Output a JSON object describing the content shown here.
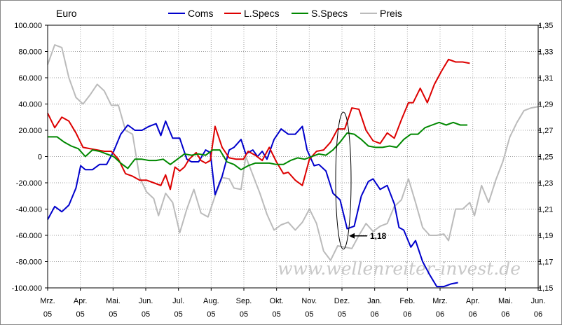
{
  "chart_data": {
    "type": "line",
    "unit_label": "Euro",
    "watermark": "www.wellenreiter-invest.de",
    "annotation": {
      "text": "1,18",
      "x": "Dez. 05",
      "y": 1.18
    },
    "left_axis": {
      "ylim": [
        -100000,
        100000
      ],
      "ticks": [
        100000,
        80000,
        60000,
        40000,
        20000,
        0,
        -20000,
        -40000,
        -60000,
        -80000,
        -100000
      ],
      "tick_labels": [
        "100.000",
        "80.000",
        "60.000",
        "40.000",
        "20.000",
        "0",
        "-20.000",
        "-40.000",
        "-60.000",
        "-80.000",
        "-100.000"
      ]
    },
    "right_axis": {
      "ylim": [
        1.15,
        1.35
      ],
      "ticks": [
        1.35,
        1.33,
        1.31,
        1.29,
        1.27,
        1.25,
        1.23,
        1.21,
        1.19,
        1.17,
        1.15
      ],
      "tick_labels": [
        "1,35",
        "1,33",
        "1,31",
        "1,29",
        "1,27",
        "1,25",
        "1,23",
        "1,21",
        "1,19",
        "1,17",
        "1,15"
      ]
    },
    "x_labels": [
      [
        "Mrz.",
        "05"
      ],
      [
        "Apr.",
        "05"
      ],
      [
        "Mai.",
        "05"
      ],
      [
        "Jun.",
        "05"
      ],
      [
        "Jul.",
        "05"
      ],
      [
        "Aug.",
        "05"
      ],
      [
        "Sep.",
        "05"
      ],
      [
        "Okt.",
        "05"
      ],
      [
        "Nov.",
        "05"
      ],
      [
        "Dez.",
        "05"
      ],
      [
        "Jan.",
        "06"
      ],
      [
        "Feb.",
        "06"
      ],
      [
        "Mrz.",
        "06"
      ],
      [
        "Apr.",
        "06"
      ],
      [
        "Mai.",
        "06"
      ],
      [
        "Jun.",
        "06"
      ]
    ],
    "x_start": 0,
    "x_end": 15,
    "grid": true,
    "legend_position": "top",
    "series": [
      {
        "name": "Coms",
        "color": "#0000cc",
        "axis": "left",
        "points": [
          [
            0,
            -48000
          ],
          [
            0.3,
            -38000
          ],
          [
            0.6,
            -42000
          ],
          [
            0.9,
            -37000
          ],
          [
            1.2,
            -24000
          ],
          [
            1.4,
            -7000
          ],
          [
            1.6,
            -10000
          ],
          [
            1.9,
            -10000
          ],
          [
            2.2,
            -6000
          ],
          [
            2.5,
            -6000
          ],
          [
            2.8,
            4000
          ],
          [
            3.1,
            17000
          ],
          [
            3.4,
            24000
          ],
          [
            3.7,
            20000
          ],
          [
            4.0,
            20000
          ],
          [
            4.3,
            23000
          ],
          [
            4.6,
            25000
          ],
          [
            4.8,
            16000
          ],
          [
            5.0,
            27000
          ],
          [
            5.3,
            14000
          ],
          [
            5.6,
            14000
          ],
          [
            5.9,
            -2000
          ],
          [
            6.1,
            -4000
          ],
          [
            6.4,
            -4000
          ],
          [
            6.7,
            5000
          ],
          [
            6.9,
            3000
          ],
          [
            7.1,
            -29000
          ],
          [
            7.4,
            -15000
          ],
          [
            7.7,
            5000
          ],
          [
            7.9,
            7000
          ],
          [
            8.2,
            13000
          ],
          [
            8.4,
            2000
          ],
          [
            8.7,
            5000
          ],
          [
            8.9,
            0
          ],
          [
            9.1,
            4000
          ],
          [
            9.3,
            -2000
          ],
          [
            9.6,
            13000
          ],
          [
            9.9,
            21000
          ],
          [
            10.2,
            17000
          ],
          [
            10.5,
            17000
          ],
          [
            10.8,
            23000
          ],
          [
            11.0,
            5000
          ],
          [
            11.3,
            -7000
          ],
          [
            11.5,
            -6000
          ],
          [
            11.8,
            -11000
          ],
          [
            12.1,
            -28000
          ],
          [
            12.4,
            -33000
          ],
          [
            12.7,
            -55000
          ],
          [
            13.0,
            -53000
          ],
          [
            13.3,
            -30000
          ],
          [
            13.6,
            -19000
          ],
          [
            13.8,
            -17000
          ],
          [
            14.1,
            -25000
          ],
          [
            14.4,
            -22000
          ],
          [
            14.7,
            -36000
          ],
          [
            14.9,
            -54000
          ],
          [
            15.1,
            -56000
          ],
          [
            15.4,
            -69000
          ],
          [
            15.6,
            -64000
          ],
          [
            15.9,
            -80000
          ],
          [
            16.2,
            -90000
          ],
          [
            16.5,
            -99000
          ],
          [
            16.8,
            -99000
          ],
          [
            17.1,
            -97000
          ],
          [
            17.4,
            -96000
          ]
        ]
      },
      {
        "name": "L.Specs",
        "color": "#dd0000",
        "axis": "left",
        "points": [
          [
            0,
            33000
          ],
          [
            0.3,
            22000
          ],
          [
            0.6,
            30000
          ],
          [
            0.9,
            27000
          ],
          [
            1.2,
            18000
          ],
          [
            1.5,
            7000
          ],
          [
            1.8,
            6000
          ],
          [
            2.1,
            5000
          ],
          [
            2.4,
            4000
          ],
          [
            2.7,
            4000
          ],
          [
            3.0,
            -2000
          ],
          [
            3.3,
            -13000
          ],
          [
            3.6,
            -15000
          ],
          [
            3.9,
            -18000
          ],
          [
            4.2,
            -18000
          ],
          [
            4.5,
            -20000
          ],
          [
            4.8,
            -22000
          ],
          [
            5.0,
            -14000
          ],
          [
            5.2,
            -25000
          ],
          [
            5.4,
            -8000
          ],
          [
            5.6,
            -11000
          ],
          [
            5.8,
            -8000
          ],
          [
            6.0,
            -2000
          ],
          [
            6.3,
            3000
          ],
          [
            6.5,
            -3000
          ],
          [
            6.7,
            -5000
          ],
          [
            6.9,
            -3000
          ],
          [
            7.1,
            23000
          ],
          [
            7.4,
            7000
          ],
          [
            7.7,
            -1000
          ],
          [
            8.0,
            -2000
          ],
          [
            8.3,
            -2000
          ],
          [
            8.5,
            4000
          ],
          [
            8.8,
            1000
          ],
          [
            9.1,
            -3000
          ],
          [
            9.4,
            7000
          ],
          [
            9.7,
            -4000
          ],
          [
            10.0,
            -13000
          ],
          [
            10.2,
            -12000
          ],
          [
            10.5,
            -18000
          ],
          [
            10.8,
            -22000
          ],
          [
            11.1,
            -2000
          ],
          [
            11.4,
            4000
          ],
          [
            11.7,
            5000
          ],
          [
            12.0,
            11000
          ],
          [
            12.3,
            21000
          ],
          [
            12.6,
            21000
          ],
          [
            12.9,
            37000
          ],
          [
            13.2,
            36000
          ],
          [
            13.5,
            20000
          ],
          [
            13.8,
            12000
          ],
          [
            14.1,
            10000
          ],
          [
            14.4,
            18000
          ],
          [
            14.7,
            14000
          ],
          [
            15.0,
            28000
          ],
          [
            15.3,
            41000
          ],
          [
            15.5,
            41000
          ],
          [
            15.8,
            52000
          ],
          [
            16.1,
            41000
          ],
          [
            16.4,
            55000
          ],
          [
            16.7,
            65000
          ],
          [
            17.0,
            74000
          ],
          [
            17.3,
            72000
          ],
          [
            17.6,
            72000
          ],
          [
            17.9,
            71000
          ]
        ]
      },
      {
        "name": "S.Specs",
        "color": "#008800",
        "axis": "left",
        "points": [
          [
            0,
            15000
          ],
          [
            0.4,
            15000
          ],
          [
            0.7,
            11000
          ],
          [
            1.0,
            8000
          ],
          [
            1.3,
            6000
          ],
          [
            1.6,
            0
          ],
          [
            1.9,
            5000
          ],
          [
            2.2,
            4000
          ],
          [
            2.5,
            2000
          ],
          [
            2.8,
            0
          ],
          [
            3.1,
            -5000
          ],
          [
            3.4,
            -9000
          ],
          [
            3.7,
            -2000
          ],
          [
            4.0,
            -2000
          ],
          [
            4.3,
            -3000
          ],
          [
            4.6,
            -3000
          ],
          [
            4.9,
            -2000
          ],
          [
            5.2,
            -6000
          ],
          [
            5.5,
            -2000
          ],
          [
            5.8,
            2000
          ],
          [
            6.1,
            1000
          ],
          [
            6.4,
            2000
          ],
          [
            6.7,
            1000
          ],
          [
            7.0,
            5000
          ],
          [
            7.3,
            5000
          ],
          [
            7.6,
            -4000
          ],
          [
            7.9,
            -6000
          ],
          [
            8.2,
            -10000
          ],
          [
            8.5,
            -7000
          ],
          [
            8.8,
            -5000
          ],
          [
            9.1,
            -5000
          ],
          [
            9.4,
            -5000
          ],
          [
            9.7,
            -6000
          ],
          [
            10.0,
            -6000
          ],
          [
            10.3,
            -3000
          ],
          [
            10.6,
            -1000
          ],
          [
            10.9,
            -2000
          ],
          [
            11.2,
            0
          ],
          [
            11.5,
            2000
          ],
          [
            11.8,
            1000
          ],
          [
            12.1,
            5000
          ],
          [
            12.4,
            11000
          ],
          [
            12.7,
            18000
          ],
          [
            13.0,
            17000
          ],
          [
            13.3,
            13000
          ],
          [
            13.6,
            8000
          ],
          [
            13.9,
            7000
          ],
          [
            14.2,
            7000
          ],
          [
            14.5,
            8000
          ],
          [
            14.8,
            7000
          ],
          [
            15.1,
            13000
          ],
          [
            15.4,
            17000
          ],
          [
            15.7,
            17000
          ],
          [
            16.0,
            22000
          ],
          [
            16.3,
            24000
          ],
          [
            16.6,
            26000
          ],
          [
            16.9,
            24000
          ],
          [
            17.2,
            26000
          ],
          [
            17.5,
            24000
          ],
          [
            17.8,
            24000
          ]
        ]
      },
      {
        "name": "Preis",
        "color": "#bbbbbb",
        "axis": "right",
        "points": [
          [
            0,
            1.32
          ],
          [
            0.3,
            1.335
          ],
          [
            0.6,
            1.333
          ],
          [
            0.9,
            1.31
          ],
          [
            1.2,
            1.295
          ],
          [
            1.5,
            1.29
          ],
          [
            1.8,
            1.297
          ],
          [
            2.1,
            1.305
          ],
          [
            2.4,
            1.3
          ],
          [
            2.7,
            1.289
          ],
          [
            3.0,
            1.289
          ],
          [
            3.3,
            1.27
          ],
          [
            3.6,
            1.267
          ],
          [
            3.9,
            1.234
          ],
          [
            4.2,
            1.223
          ],
          [
            4.5,
            1.218
          ],
          [
            4.7,
            1.205
          ],
          [
            5.0,
            1.222
          ],
          [
            5.3,
            1.215
          ],
          [
            5.6,
            1.192
          ],
          [
            5.9,
            1.21
          ],
          [
            6.2,
            1.225
          ],
          [
            6.5,
            1.207
          ],
          [
            6.8,
            1.204
          ],
          [
            7.1,
            1.22
          ],
          [
            7.4,
            1.234
          ],
          [
            7.7,
            1.233
          ],
          [
            7.9,
            1.226
          ],
          [
            8.2,
            1.225
          ],
          [
            8.4,
            1.25
          ],
          [
            8.7,
            1.236
          ],
          [
            9.0,
            1.222
          ],
          [
            9.3,
            1.206
          ],
          [
            9.6,
            1.194
          ],
          [
            9.9,
            1.198
          ],
          [
            10.2,
            1.2
          ],
          [
            10.5,
            1.194
          ],
          [
            10.8,
            1.2
          ],
          [
            11.1,
            1.21
          ],
          [
            11.4,
            1.199
          ],
          [
            11.7,
            1.178
          ],
          [
            12.0,
            1.171
          ],
          [
            12.3,
            1.182
          ],
          [
            12.6,
            1.181
          ],
          [
            12.9,
            1.18
          ],
          [
            13.2,
            1.19
          ],
          [
            13.5,
            1.199
          ],
          [
            13.8,
            1.193
          ],
          [
            14.1,
            1.197
          ],
          [
            14.4,
            1.199
          ],
          [
            14.7,
            1.212
          ],
          [
            15.0,
            1.217
          ],
          [
            15.3,
            1.233
          ],
          [
            15.6,
            1.215
          ],
          [
            15.9,
            1.196
          ],
          [
            16.2,
            1.19
          ],
          [
            16.5,
            1.19
          ],
          [
            16.8,
            1.191
          ],
          [
            17.0,
            1.186
          ],
          [
            17.3,
            1.21
          ],
          [
            17.6,
            1.21
          ],
          [
            17.9,
            1.215
          ],
          [
            18.1,
            1.205
          ],
          [
            18.4,
            1.228
          ],
          [
            18.7,
            1.215
          ],
          [
            19.0,
            1.232
          ],
          [
            19.3,
            1.246
          ],
          [
            19.6,
            1.265
          ],
          [
            19.9,
            1.276
          ],
          [
            20.2,
            1.285
          ],
          [
            20.5,
            1.287
          ],
          [
            20.8,
            1.288
          ]
        ]
      }
    ]
  }
}
